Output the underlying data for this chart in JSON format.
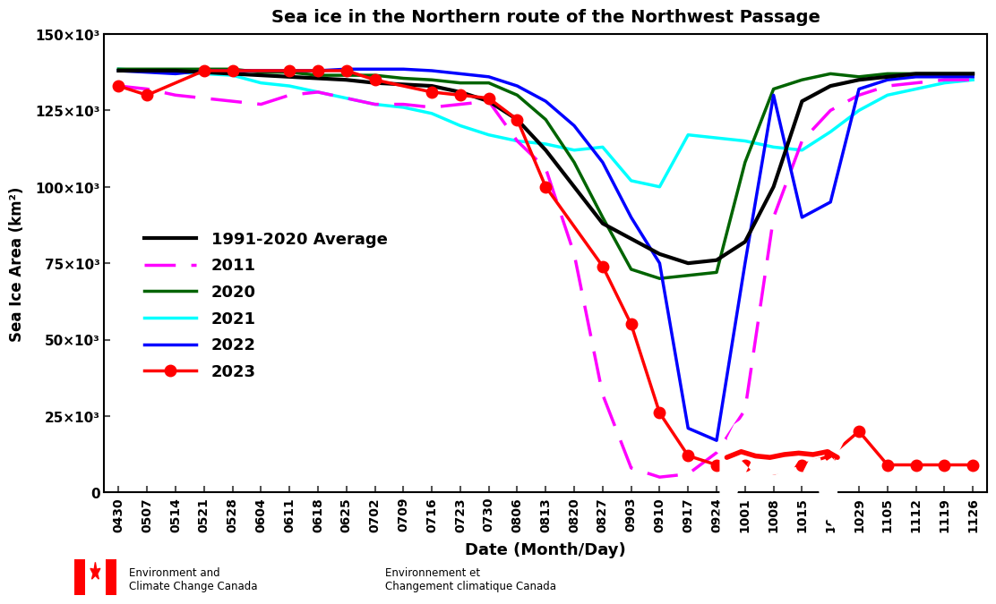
{
  "title": "Sea ice in the Northern route of the Northwest Passage",
  "ylabel": "Sea Ice Area (km²)",
  "xlabel": "Date (Month/Day)",
  "ylim": [
    0,
    150000
  ],
  "background_color": "#ffffff",
  "xtick_labels": [
    "0430",
    "0507",
    "0514",
    "0521",
    "0528",
    "0604",
    "0611",
    "0618",
    "0625",
    "0702",
    "0709",
    "0716",
    "0723",
    "0730",
    "0806",
    "0813",
    "0820",
    "0827",
    "0903",
    "0910",
    "0917",
    "0924",
    "1001",
    "1008",
    "1015",
    "1022",
    "1029",
    "1105",
    "1112",
    "1119",
    "1126"
  ],
  "ytick_vals": [
    0,
    25000,
    50000,
    75000,
    100000,
    125000,
    150000
  ],
  "ytick_labels": [
    "0",
    "25×10³",
    "50×10³",
    "75×10³",
    "100×10³",
    "125×10³",
    "150×10³"
  ],
  "avg_y": [
    138000,
    138000,
    138000,
    137500,
    137000,
    136500,
    136000,
    135500,
    135000,
    134000,
    133500,
    133000,
    131000,
    128000,
    122000,
    112000,
    100000,
    88000,
    83000,
    78000,
    75000,
    76000,
    82000,
    100000,
    128000,
    133000,
    135000,
    136000,
    137000,
    137000,
    137000
  ],
  "y2011_y": [
    133000,
    132000,
    130000,
    129000,
    128000,
    127000,
    130000,
    131000,
    129000,
    127000,
    127000,
    126000,
    127000,
    128000,
    115000,
    106000,
    78000,
    32000,
    8000,
    5000,
    6000,
    13000,
    27000,
    90000,
    115000,
    125000,
    130000,
    133000,
    134000,
    135000,
    135000
  ],
  "y2020_y": [
    138500,
    138500,
    138500,
    138500,
    138500,
    137500,
    137500,
    136500,
    136500,
    136500,
    135500,
    135000,
    134000,
    134000,
    130000,
    122000,
    108000,
    90000,
    73000,
    70000,
    71000,
    72000,
    108000,
    132000,
    135000,
    137000,
    136000,
    137000,
    137000,
    137000,
    137000
  ],
  "y2021_y": [
    138500,
    138000,
    137500,
    137000,
    136500,
    134000,
    133000,
    131000,
    129000,
    127000,
    126000,
    124000,
    120000,
    117000,
    115000,
    114000,
    112000,
    113000,
    102000,
    100000,
    117000,
    116000,
    115000,
    113000,
    112000,
    118000,
    125000,
    130000,
    132000,
    134000,
    135000
  ],
  "y2022_y": [
    138000,
    137500,
    137000,
    138000,
    138000,
    138000,
    138000,
    138000,
    138500,
    138500,
    138500,
    138000,
    137000,
    136000,
    133000,
    128000,
    120000,
    108000,
    90000,
    75000,
    21000,
    17000,
    75000,
    130000,
    90000,
    95000,
    132000,
    135000,
    136000,
    136000,
    136000
  ],
  "y2023_x": [
    0,
    1,
    3,
    4,
    6,
    7,
    8,
    9,
    11,
    12,
    13,
    14,
    15,
    17,
    18,
    19,
    20,
    21,
    22,
    23,
    24,
    25,
    26,
    27,
    28,
    29,
    30
  ],
  "y2023_y": [
    133000,
    130000,
    138000,
    138000,
    138000,
    138000,
    138000,
    135000,
    131000,
    130000,
    129000,
    122000,
    100000,
    74000,
    55000,
    26000,
    12000,
    9000,
    9000,
    8000,
    9000,
    12000,
    20000,
    9000,
    9000,
    9000,
    9000
  ],
  "footer_text1": "Environment and\nClimate Change Canada",
  "footer_text2": "Environnement et\nChangement climatique Canada"
}
